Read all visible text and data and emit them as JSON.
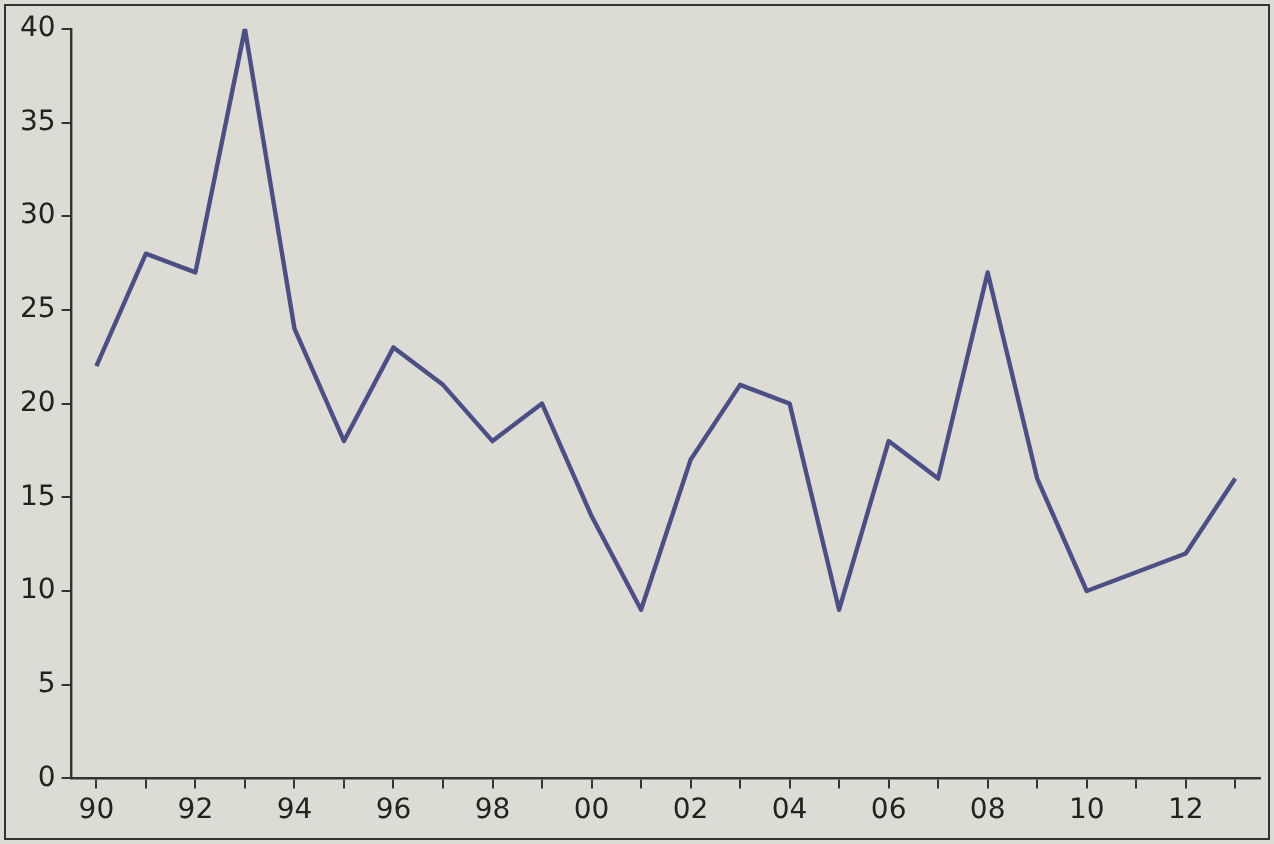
{
  "chart_data": {
    "type": "line",
    "x": [
      1990,
      1991,
      1992,
      1993,
      1994,
      1995,
      1996,
      1997,
      1998,
      1999,
      2000,
      2001,
      2002,
      2003,
      2004,
      2005,
      2006,
      2007,
      2008,
      2009,
      2010,
      2011,
      2012,
      2013
    ],
    "series": [
      {
        "color": "#4b4f86",
        "values": [
          22,
          28,
          27,
          40,
          24,
          18,
          23,
          21,
          18,
          20,
          14,
          9,
          17,
          21,
          20,
          9,
          18,
          16,
          27,
          16,
          10,
          11,
          12,
          16
        ]
      }
    ],
    "xlim": [
      1989.5,
      2013.5
    ],
    "xticks": [
      {
        "value": 1990,
        "label": "90"
      },
      {
        "value": 1991,
        "label": null
      },
      {
        "value": 1992,
        "label": "92"
      },
      {
        "value": 1993,
        "label": null
      },
      {
        "value": 1994,
        "label": "94"
      },
      {
        "value": 1995,
        "label": null
      },
      {
        "value": 1996,
        "label": "96"
      },
      {
        "value": 1997,
        "label": null
      },
      {
        "value": 1998,
        "label": "98"
      },
      {
        "value": 1999,
        "label": null
      },
      {
        "value": 2000,
        "label": "00"
      },
      {
        "value": 2001,
        "label": null
      },
      {
        "value": 2002,
        "label": "02"
      },
      {
        "value": 2003,
        "label": null
      },
      {
        "value": 2004,
        "label": "04"
      },
      {
        "value": 2005,
        "label": null
      },
      {
        "value": 2006,
        "label": "06"
      },
      {
        "value": 2007,
        "label": null
      },
      {
        "value": 2008,
        "label": "08"
      },
      {
        "value": 2009,
        "label": null
      },
      {
        "value": 2010,
        "label": "10"
      },
      {
        "value": 2011,
        "label": null
      },
      {
        "value": 2012,
        "label": "12"
      },
      {
        "value": 2013,
        "label": null
      }
    ],
    "ylim": [
      0,
      40
    ],
    "yticks": [
      0,
      5,
      10,
      15,
      20,
      25,
      30,
      35,
      40
    ],
    "grid": false,
    "legend": false,
    "marker": "none",
    "line_style": "solid"
  }
}
